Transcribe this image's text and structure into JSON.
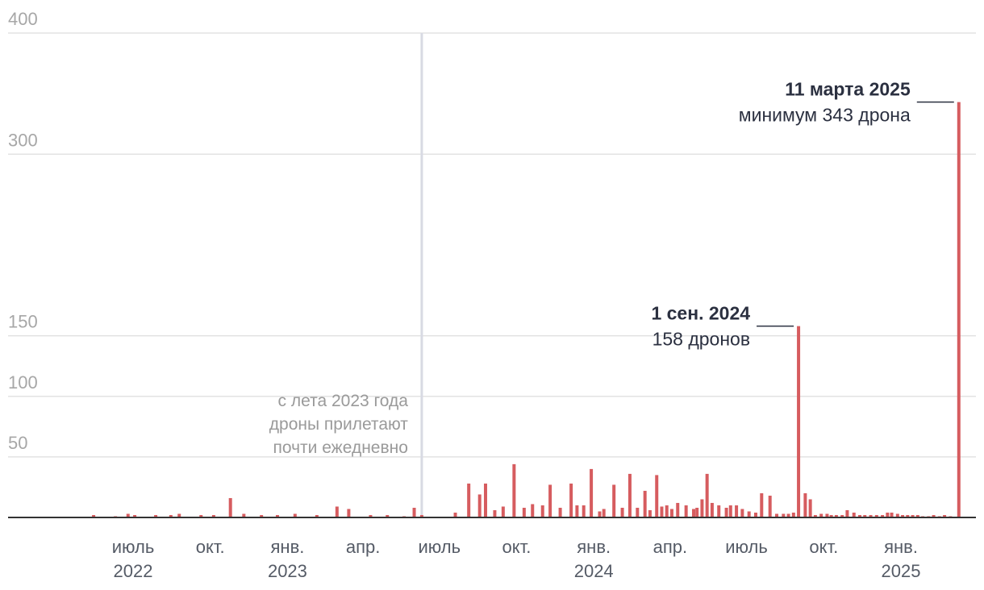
{
  "chart_data": {
    "type": "bar",
    "title": "",
    "xlabel": "",
    "ylabel": "",
    "ylim": [
      0,
      400
    ],
    "xlim": [
      "2022-05-01",
      "2025-03-20"
    ],
    "grid": true,
    "colors": {
      "bars": "#d65c5f",
      "grid": "#dedede",
      "marker": "#d8dae3",
      "axis": "#333333"
    },
    "y_ticks": [
      {
        "value": 400,
        "label": "400"
      },
      {
        "value": 300,
        "label": "300"
      },
      {
        "value": 150,
        "label": "150"
      },
      {
        "value": 100,
        "label": "100"
      },
      {
        "value": 50,
        "label": "50"
      }
    ],
    "x_ticks": [
      {
        "date": "2022-07-01",
        "label": "июль",
        "year": "2022"
      },
      {
        "date": "2022-10-01",
        "label": "окт.",
        "year": ""
      },
      {
        "date": "2023-01-01",
        "label": "янв.",
        "year": "2023"
      },
      {
        "date": "2023-04-01",
        "label": "апр.",
        "year": ""
      },
      {
        "date": "2023-07-01",
        "label": "июль",
        "year": ""
      },
      {
        "date": "2023-10-01",
        "label": "окт.",
        "year": ""
      },
      {
        "date": "2024-01-01",
        "label": "янв.",
        "year": "2024"
      },
      {
        "date": "2024-04-01",
        "label": "апр.",
        "year": ""
      },
      {
        "date": "2024-07-01",
        "label": "июль",
        "year": ""
      },
      {
        "date": "2024-10-01",
        "label": "окт.",
        "year": ""
      },
      {
        "date": "2025-01-01",
        "label": "янв.",
        "year": "2025"
      }
    ],
    "marker_line": {
      "date": "2023-06-10",
      "text": [
        "с лета 2023 года",
        "дроны прилетают",
        "почти ежедневно"
      ]
    },
    "annotations": [
      {
        "date": "2025-03-11",
        "value": 343,
        "title": "11 марта 2025",
        "subtitle": "минимум 343 дрона"
      },
      {
        "date": "2024-09-01",
        "value": 158,
        "title": "1 сен. 2024",
        "subtitle": "158 дронов"
      }
    ],
    "series": [
      {
        "values_by_date": [
          [
            "2022-05-15",
            2
          ],
          [
            "2022-06-10",
            1
          ],
          [
            "2022-06-25",
            3
          ],
          [
            "2022-07-03",
            2
          ],
          [
            "2022-07-28",
            2
          ],
          [
            "2022-08-15",
            2
          ],
          [
            "2022-08-25",
            3
          ],
          [
            "2022-09-20",
            2
          ],
          [
            "2022-10-05",
            2
          ],
          [
            "2022-10-25",
            16
          ],
          [
            "2022-11-10",
            3
          ],
          [
            "2022-12-01",
            2
          ],
          [
            "2022-12-20",
            2
          ],
          [
            "2023-01-10",
            3
          ],
          [
            "2023-02-05",
            2
          ],
          [
            "2023-03-01",
            9
          ],
          [
            "2023-03-15",
            7
          ],
          [
            "2023-04-10",
            2
          ],
          [
            "2023-04-30",
            2
          ],
          [
            "2023-05-20",
            1
          ],
          [
            "2023-06-01",
            8
          ],
          [
            "2023-06-10",
            2
          ],
          [
            "2023-07-20",
            4
          ],
          [
            "2023-08-05",
            28
          ],
          [
            "2023-08-18",
            19
          ],
          [
            "2023-08-25",
            28
          ],
          [
            "2023-09-05",
            6
          ],
          [
            "2023-09-15",
            9
          ],
          [
            "2023-09-28",
            44
          ],
          [
            "2023-10-10",
            8
          ],
          [
            "2023-10-20",
            11
          ],
          [
            "2023-11-01",
            10
          ],
          [
            "2023-11-10",
            27
          ],
          [
            "2023-11-22",
            8
          ],
          [
            "2023-12-05",
            28
          ],
          [
            "2023-12-12",
            10
          ],
          [
            "2023-12-20",
            10
          ],
          [
            "2023-12-29",
            40
          ],
          [
            "2024-01-08",
            5
          ],
          [
            "2024-01-13",
            7
          ],
          [
            "2024-01-25",
            27
          ],
          [
            "2024-02-04",
            8
          ],
          [
            "2024-02-13",
            36
          ],
          [
            "2024-02-22",
            8
          ],
          [
            "2024-03-02",
            22
          ],
          [
            "2024-03-08",
            6
          ],
          [
            "2024-03-16",
            35
          ],
          [
            "2024-03-22",
            9
          ],
          [
            "2024-03-28",
            10
          ],
          [
            "2024-04-03",
            7
          ],
          [
            "2024-04-10",
            12
          ],
          [
            "2024-04-20",
            10
          ],
          [
            "2024-04-29",
            7
          ],
          [
            "2024-05-03",
            8
          ],
          [
            "2024-05-09",
            15
          ],
          [
            "2024-05-15",
            36
          ],
          [
            "2024-05-21",
            12
          ],
          [
            "2024-05-29",
            10
          ],
          [
            "2024-06-07",
            8
          ],
          [
            "2024-06-12",
            10
          ],
          [
            "2024-06-19",
            10
          ],
          [
            "2024-06-26",
            7
          ],
          [
            "2024-07-04",
            5
          ],
          [
            "2024-07-12",
            4
          ],
          [
            "2024-07-19",
            20
          ],
          [
            "2024-07-29",
            18
          ],
          [
            "2024-08-06",
            3
          ],
          [
            "2024-08-14",
            3
          ],
          [
            "2024-08-20",
            3
          ],
          [
            "2024-08-26",
            4
          ],
          [
            "2024-09-01",
            158
          ],
          [
            "2024-09-09",
            20
          ],
          [
            "2024-09-15",
            15
          ],
          [
            "2024-09-21",
            2
          ],
          [
            "2024-09-28",
            3
          ],
          [
            "2024-10-05",
            3
          ],
          [
            "2024-10-10",
            2
          ],
          [
            "2024-10-16",
            2
          ],
          [
            "2024-10-23",
            2
          ],
          [
            "2024-10-29",
            6
          ],
          [
            "2024-11-06",
            4
          ],
          [
            "2024-11-13",
            2
          ],
          [
            "2024-11-19",
            2
          ],
          [
            "2024-11-26",
            2
          ],
          [
            "2024-12-03",
            2
          ],
          [
            "2024-12-10",
            2
          ],
          [
            "2024-12-16",
            4
          ],
          [
            "2024-12-21",
            4
          ],
          [
            "2024-12-28",
            3
          ],
          [
            "2025-01-03",
            2
          ],
          [
            "2025-01-09",
            2
          ],
          [
            "2025-01-15",
            2
          ],
          [
            "2025-01-21",
            2
          ],
          [
            "2025-01-27",
            1
          ],
          [
            "2025-02-03",
            1
          ],
          [
            "2025-02-09",
            2
          ],
          [
            "2025-02-16",
            1
          ],
          [
            "2025-02-22",
            2
          ],
          [
            "2025-03-01",
            1
          ],
          [
            "2025-03-11",
            343
          ]
        ]
      }
    ]
  }
}
